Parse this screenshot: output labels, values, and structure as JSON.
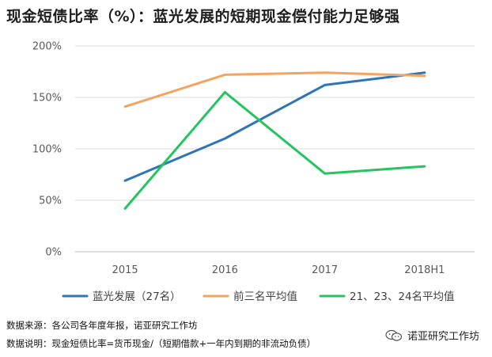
{
  "title": "现金短债比率（%）：蓝光发展的短期现金偿付能力足够强",
  "notes": {
    "source": "数据来源：各公司各年度年报，诺亚研究工作坊",
    "definition": "数据说明：现金短债比率=货币现金/（短期借款+一年内到期的非流动负债）"
  },
  "brand": {
    "label": "诺亚研究工作坊",
    "icon": "wechat-icon"
  },
  "chart_data": {
    "type": "line",
    "categories": [
      "2015",
      "2016",
      "2017",
      "2018H1"
    ],
    "ylim": [
      0,
      200
    ],
    "yticks": [
      "0%",
      "50%",
      "100%",
      "150%",
      "200%"
    ],
    "grid": true,
    "legend_position": "bottom",
    "series": [
      {
        "name": "蓝光发展（27名）",
        "color": "#2E75B6",
        "values": [
          69,
          110,
          162,
          174
        ]
      },
      {
        "name": "前三名平均值",
        "color": "#F4A460",
        "values": [
          141,
          172,
          174,
          171
        ]
      },
      {
        "name": "21、23、24名平均值",
        "color": "#22C55E",
        "values": [
          42,
          155,
          76,
          83
        ]
      }
    ]
  }
}
